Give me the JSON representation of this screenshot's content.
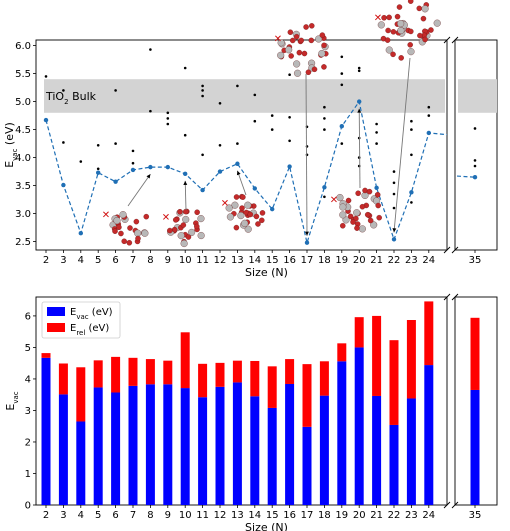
{
  "colors": {
    "vac_bar": "#0000ff",
    "rel_bar": "#ff0000",
    "line": "#1f6fb5",
    "band": "#d3d3d3",
    "atom_ti": "#b8b8b8",
    "atom_o": "#c42a2a"
  },
  "chart_data": [
    {
      "type": "line",
      "ylabel_main": "E",
      "ylabel_sub": "vac",
      "ylabel_unit": " (eV)",
      "xlabel": "Size (N)",
      "x": [
        2,
        3,
        4,
        5,
        6,
        7,
        8,
        9,
        10,
        11,
        12,
        13,
        14,
        15,
        16,
        17,
        18,
        19,
        20,
        21,
        22,
        23,
        24,
        35
      ],
      "x_tick_labels": [
        "2",
        "3",
        "4",
        "5",
        "6",
        "7",
        "8",
        "9",
        "10",
        "11",
        "12",
        "13",
        "14",
        "15",
        "16",
        "17",
        "18",
        "19",
        "20",
        "21",
        "22",
        "23",
        "24",
        "35"
      ],
      "y": [
        4.67,
        3.51,
        2.65,
        3.73,
        3.57,
        3.78,
        3.83,
        3.83,
        3.71,
        3.42,
        3.75,
        3.89,
        3.45,
        3.08,
        3.84,
        2.48,
        3.47,
        4.56,
        5.0,
        3.46,
        2.54,
        3.38,
        4.44,
        3.65
      ],
      "ylim": [
        2.35,
        6.1
      ],
      "y_ticks": [
        "2.5",
        "3.0",
        "3.5",
        "4.0",
        "4.5",
        "5.0",
        "5.5",
        "6.0"
      ],
      "axis_break": "between 24 and 35",
      "band": {
        "label_main": "TiO",
        "label_sub": "2",
        "label_rest": " Bulk",
        "y_low": 4.8,
        "y_high": 5.4
      },
      "scatter_points": [
        [
          2,
          5.45
        ],
        [
          3,
          5.2
        ],
        [
          3,
          4.27
        ],
        [
          4,
          3.93
        ],
        [
          5,
          4.22
        ],
        [
          5,
          3.8
        ],
        [
          6,
          5.2
        ],
        [
          6,
          4.25
        ],
        [
          7,
          4.12
        ],
        [
          7,
          3.9
        ],
        [
          8,
          5.93
        ],
        [
          8,
          4.83
        ],
        [
          9,
          4.8
        ],
        [
          9,
          4.7
        ],
        [
          9,
          4.6
        ],
        [
          10,
          5.6
        ],
        [
          10,
          4.4
        ],
        [
          11,
          5.28
        ],
        [
          11,
          5.2
        ],
        [
          11,
          5.1
        ],
        [
          11,
          4.05
        ],
        [
          12,
          4.97
        ],
        [
          12,
          4.22
        ],
        [
          13,
          5.28
        ],
        [
          13,
          4.25
        ],
        [
          14,
          5.12
        ],
        [
          14,
          4.65
        ],
        [
          15,
          4.75
        ],
        [
          15,
          4.5
        ],
        [
          16,
          5.48
        ],
        [
          16,
          4.72
        ],
        [
          16,
          4.3
        ],
        [
          17,
          4.55
        ],
        [
          17,
          4.2
        ],
        [
          17,
          4.05
        ],
        [
          18,
          4.9
        ],
        [
          18,
          4.7
        ],
        [
          18,
          4.5
        ],
        [
          18,
          3.3
        ],
        [
          19,
          5.8
        ],
        [
          19,
          5.5
        ],
        [
          19,
          5.3
        ],
        [
          19,
          4.25
        ],
        [
          20,
          5.6
        ],
        [
          20,
          5.55
        ],
        [
          20,
          4.35
        ],
        [
          20,
          4.0
        ],
        [
          20,
          3.85
        ],
        [
          21,
          4.6
        ],
        [
          21,
          4.45
        ],
        [
          21,
          4.25
        ],
        [
          21,
          3.35
        ],
        [
          22,
          3.75
        ],
        [
          22,
          3.55
        ],
        [
          22,
          3.35
        ],
        [
          22,
          3.1
        ],
        [
          23,
          4.65
        ],
        [
          23,
          4.5
        ],
        [
          23,
          4.05
        ],
        [
          23,
          3.2
        ],
        [
          24,
          4.9
        ],
        [
          24,
          4.75
        ],
        [
          35,
          4.52
        ],
        [
          35,
          3.95
        ],
        [
          35,
          3.85
        ]
      ],
      "structure_insets": [
        {
          "atoms": 55,
          "points_to": 8,
          "arrow": "up"
        },
        {
          "atoms": 70,
          "points_to": 10,
          "arrow": "up"
        },
        {
          "atoms": 80,
          "points_to": 13,
          "arrow": "up"
        },
        {
          "atoms": 120,
          "points_to": 17,
          "arrow": "down"
        },
        {
          "atoms": 130,
          "points_to": 20,
          "arrow": "up"
        },
        {
          "atoms": 150,
          "points_to": 22,
          "arrow": "down"
        }
      ]
    },
    {
      "type": "bar",
      "stacked": true,
      "xlabel": "Size (N)",
      "ylabel_main": "E",
      "ylabel_sub": "vac",
      "categories": [
        "2",
        "3",
        "4",
        "5",
        "6",
        "7",
        "8",
        "9",
        "10",
        "11",
        "12",
        "13",
        "14",
        "15",
        "16",
        "17",
        "18",
        "19",
        "20",
        "21",
        "22",
        "23",
        "24",
        "35"
      ],
      "series": [
        {
          "name_main": "E",
          "name_sub": "vac",
          "name_unit": " (eV)",
          "values": [
            4.67,
            3.51,
            2.65,
            3.73,
            3.57,
            3.78,
            3.83,
            3.83,
            3.71,
            3.42,
            3.75,
            3.89,
            3.45,
            3.08,
            3.84,
            2.48,
            3.47,
            4.56,
            5.0,
            3.46,
            2.54,
            3.38,
            4.44,
            3.65
          ]
        },
        {
          "name_main": "E",
          "name_sub": "rel",
          "name_unit": " (eV)",
          "values": [
            0.15,
            0.98,
            1.72,
            0.86,
            1.13,
            0.89,
            0.8,
            0.75,
            1.77,
            1.06,
            0.76,
            0.69,
            1.12,
            1.32,
            0.79,
            1.99,
            1.09,
            0.57,
            0.96,
            2.54,
            2.69,
            2.49,
            2.02,
            2.29
          ]
        }
      ],
      "ylim": [
        0,
        6.6
      ],
      "y_ticks": [
        "0",
        "1",
        "2",
        "3",
        "4",
        "5",
        "6"
      ],
      "legend": "top-left",
      "axis_break": "between 24 and 35"
    }
  ]
}
